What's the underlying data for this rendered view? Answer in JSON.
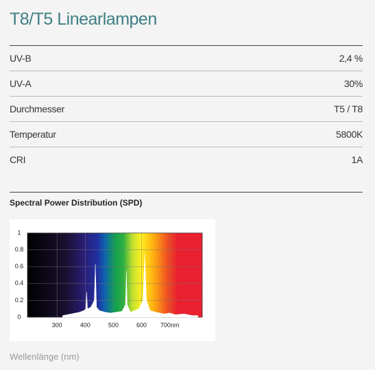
{
  "title": "T8/T5 Linearlampen",
  "specs": [
    {
      "label": "UV-B",
      "value": "2,4 %"
    },
    {
      "label": "UV-A",
      "value": "30%"
    },
    {
      "label": "Durchmesser",
      "value": "T5 / T8"
    },
    {
      "label": "Temperatur",
      "value": "5800K"
    },
    {
      "label": "CRI",
      "value": "1A"
    }
  ],
  "spd_heading": "Spectral Power Distribution (SPD)",
  "chart_data": {
    "type": "area",
    "x": [
      320,
      350,
      380,
      395,
      402,
      405,
      408,
      420,
      432,
      436,
      440,
      450,
      470,
      490,
      510,
      530,
      543,
      546,
      549,
      560,
      575,
      590,
      605,
      611,
      617,
      630,
      650,
      680,
      700,
      720,
      750,
      780,
      800
    ],
    "values": [
      0.02,
      0.04,
      0.06,
      0.08,
      0.1,
      0.3,
      0.1,
      0.12,
      0.2,
      0.63,
      0.12,
      0.08,
      0.06,
      0.05,
      0.06,
      0.07,
      0.15,
      0.55,
      0.15,
      0.06,
      0.08,
      0.1,
      0.2,
      0.75,
      0.2,
      0.08,
      0.06,
      0.04,
      0.05,
      0.03,
      0.04,
      0.02,
      0.02
    ],
    "color": "#ffffff",
    "xlim": [
      195,
      815
    ],
    "ylim": [
      0,
      1
    ],
    "xticks": [
      300,
      400,
      500,
      600,
      {
        "value": 700,
        "label": "700nm"
      }
    ],
    "yticks": [
      0,
      0.2,
      0.4,
      0.6,
      0.8,
      1
    ],
    "grid": true,
    "x_label": "Wellenlänge (nm)"
  }
}
